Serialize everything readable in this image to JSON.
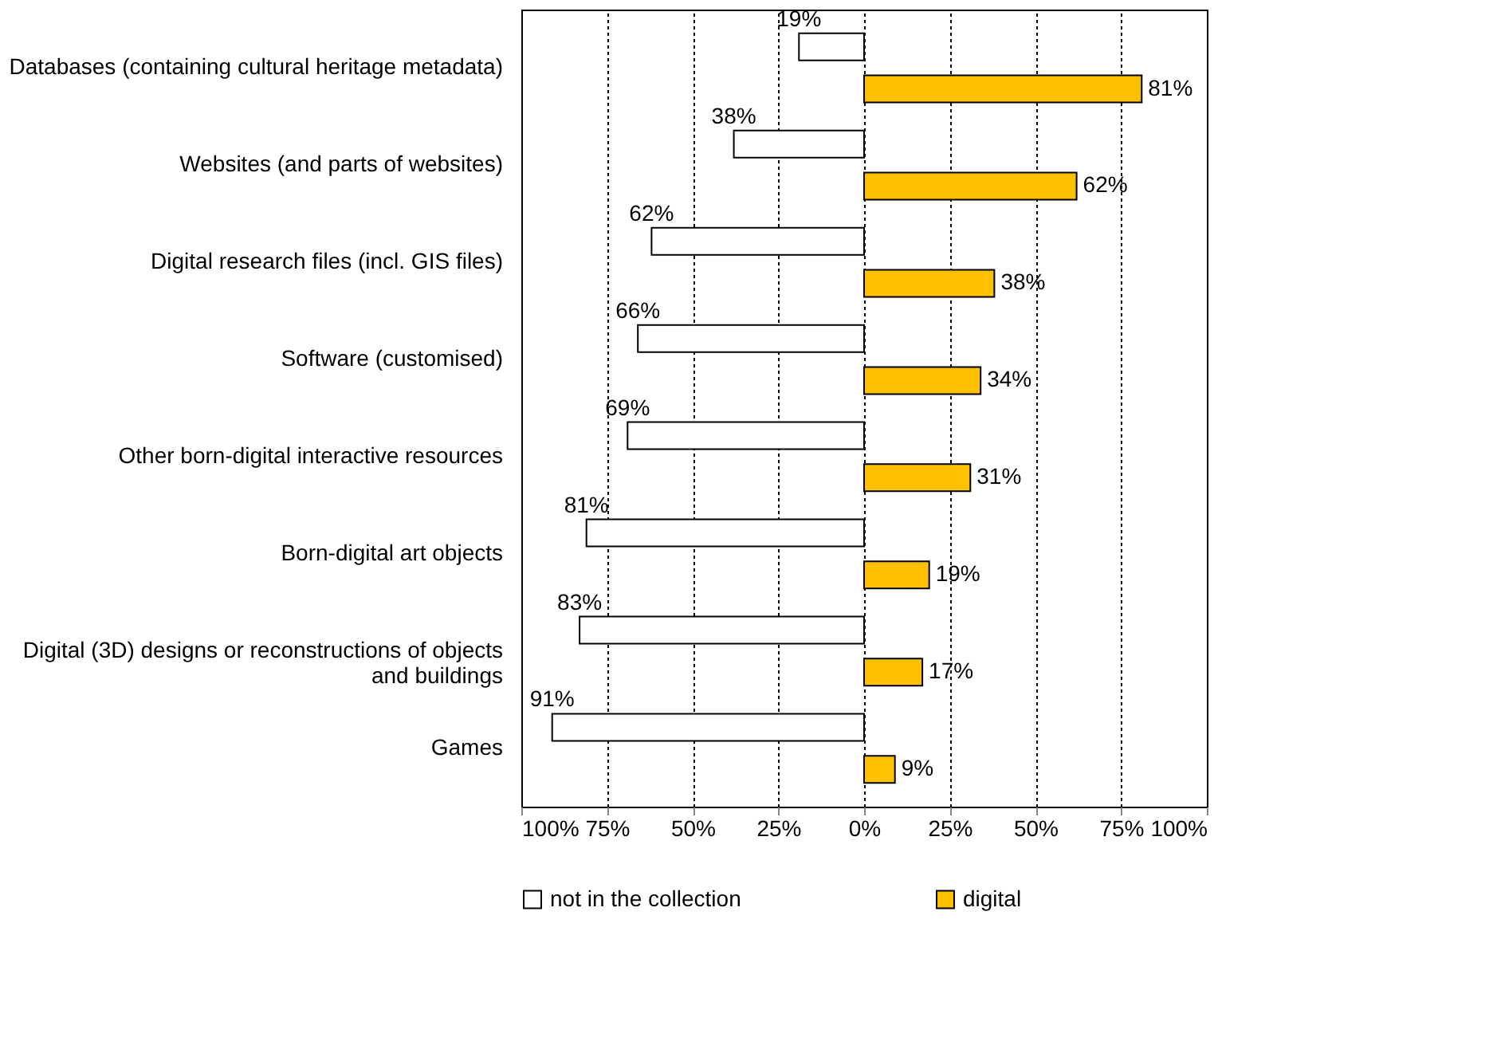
{
  "chart_data": {
    "type": "bar",
    "orientation": "horizontal",
    "categories": [
      "Databases (containing cultural heritage metadata)",
      "Websites (and parts of websites)",
      "Digital research files (incl. GIS files)",
      "Software (customised)",
      "Other born-digital interactive resources",
      "Born-digital art objects",
      "Digital (3D) designs or reconstructions of objects\nand buildings",
      "Games"
    ],
    "series": [
      {
        "name": "not in the collection",
        "color": "#ffffff",
        "values": [
          19,
          38,
          62,
          66,
          69,
          81,
          83,
          91
        ],
        "base": [
          -19,
          -38,
          -62,
          -66,
          -69,
          -81,
          -83,
          -91
        ],
        "value_labels": [
          "19%",
          "38%",
          "62%",
          "66%",
          "69%",
          "81%",
          "83%",
          "91%"
        ]
      },
      {
        "name": "digital",
        "color": "#ffc000",
        "values": [
          81,
          62,
          38,
          34,
          31,
          19,
          17,
          9
        ],
        "value_labels": [
          "81%",
          "62%",
          "38%",
          "34%",
          "31%",
          "19%",
          "17%",
          "9%"
        ]
      }
    ],
    "xlim": [
      -100,
      100
    ],
    "xticks": [
      {
        "value": -100,
        "label": "100%"
      },
      {
        "value": -75,
        "label": "75%"
      },
      {
        "value": -50,
        "label": "50%"
      },
      {
        "value": -25,
        "label": "25%"
      },
      {
        "value": 0,
        "label": "0%"
      },
      {
        "value": 25,
        "label": "25%"
      },
      {
        "value": 50,
        "label": "50%"
      },
      {
        "value": 75,
        "label": "75%"
      },
      {
        "value": 100,
        "label": "100%"
      }
    ],
    "grid": "x",
    "legend": "bottom"
  }
}
